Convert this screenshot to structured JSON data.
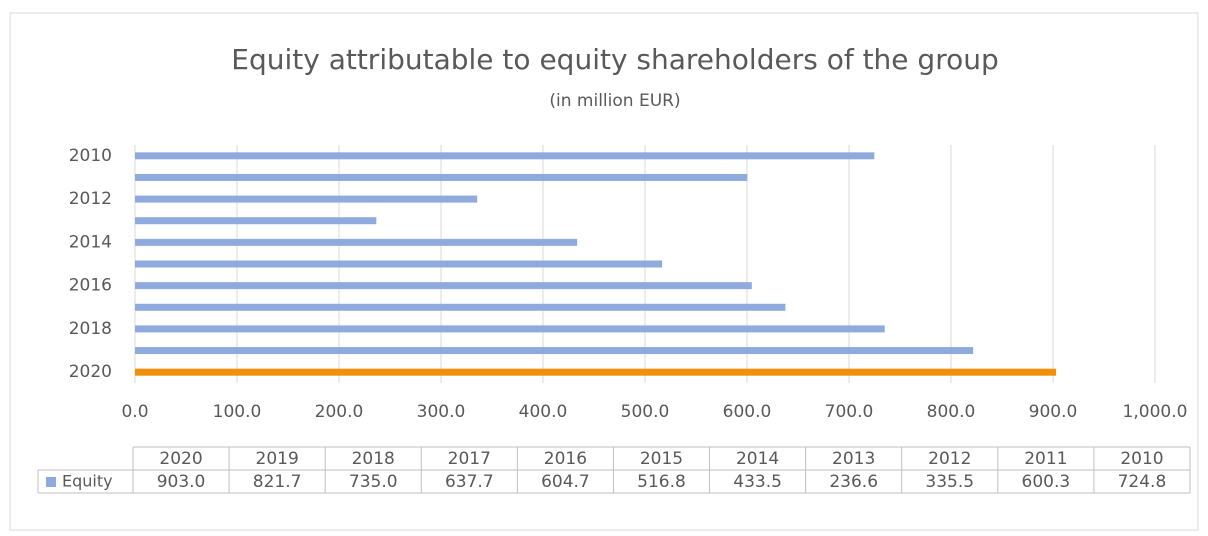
{
  "chart_data": {
    "type": "bar",
    "orientation": "horizontal",
    "title": "Equity attributable to equity shareholders of the group",
    "subtitle": "(in million EUR)",
    "categories": [
      "2010",
      null,
      "2012",
      null,
      "2014",
      null,
      "2016",
      null,
      "2018",
      null,
      "2020"
    ],
    "table_columns": [
      "2020",
      "2019",
      "2018",
      "2017",
      "2016",
      "2015",
      "2014",
      "2013",
      "2012",
      "2011",
      "2010"
    ],
    "series": [
      {
        "name": "Equity",
        "color": "#8faadc",
        "colors": [
          "#8faadc",
          "#8faadc",
          "#8faadc",
          "#8faadc",
          "#8faadc",
          "#8faadc",
          "#8faadc",
          "#8faadc",
          "#8faadc",
          "#8faadc",
          "#f0900a"
        ],
        "values": [
          724.8,
          600.3,
          335.5,
          236.6,
          433.5,
          516.8,
          604.7,
          637.7,
          735.0,
          821.7,
          903.0
        ],
        "value_labels": [
          "724.8",
          "600.3",
          "335.5",
          "236.6",
          "433.5",
          "516.8",
          "604.7",
          "637.7",
          "735.0",
          "821.7",
          "903.0"
        ]
      }
    ],
    "xlim": [
      0,
      1000
    ],
    "xticks": [
      {
        "value": 0,
        "label": "0.0"
      },
      {
        "value": 100,
        "label": "100.0"
      },
      {
        "value": 200,
        "label": "200.0"
      },
      {
        "value": 300,
        "label": "300.0"
      },
      {
        "value": 400,
        "label": "400.0"
      },
      {
        "value": 500,
        "label": "500.0"
      },
      {
        "value": 600,
        "label": "600.0"
      },
      {
        "value": 700,
        "label": "700.0"
      },
      {
        "value": 800,
        "label": "800.0"
      },
      {
        "value": 900,
        "label": "900.0"
      },
      {
        "value": 1000,
        "label": "1,000.0"
      }
    ],
    "grid": true
  }
}
